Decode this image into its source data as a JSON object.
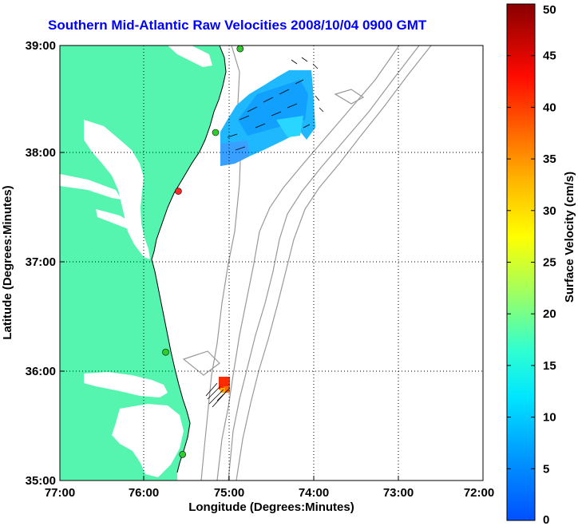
{
  "title": "Southern Mid-Atlantic Raw Velocities 2008/10/04 0900 GMT",
  "x_axis": {
    "label": "Longitude (Degrees:Minutes)",
    "ticks": [
      "77:00",
      "76:00",
      "75:00",
      "74:00",
      "73:00",
      "72:00"
    ]
  },
  "y_axis": {
    "label": "Latitude (Degrees:Minutes)",
    "ticks": [
      "39:00",
      "38:00",
      "37:00",
      "36:00",
      "35:00"
    ]
  },
  "colorbar": {
    "label": "Surface Velocity (cm/s)",
    "min": 0,
    "max": 50,
    "ticks": [
      "0",
      "5",
      "10",
      "15",
      "20",
      "25",
      "30",
      "35",
      "40",
      "45",
      "50"
    ]
  },
  "colors": {
    "land": "#55f5b0",
    "water": "#ffffff",
    "bathymetry": "#999999",
    "title": "#0000ff",
    "station_active": "#2ecc2e",
    "station_inactive": "#ff2a2a"
  },
  "stations": [
    {
      "lon": -74.87,
      "lat": 38.97,
      "status": "active"
    },
    {
      "lon": -75.16,
      "lat": 38.2,
      "status": "active"
    },
    {
      "lon": -75.6,
      "lat": 37.66,
      "status": "inactive"
    },
    {
      "lon": -75.75,
      "lat": 36.18,
      "status": "active"
    },
    {
      "lon": -75.55,
      "lat": 35.24,
      "status": "active"
    }
  ]
}
